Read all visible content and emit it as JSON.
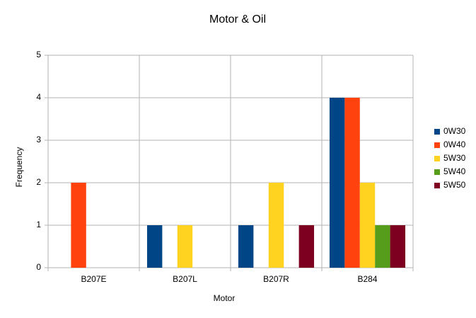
{
  "chart_data": {
    "type": "bar",
    "title": "Motor & Oil",
    "x_label": "Motor",
    "y_label": "Frequency",
    "categories": [
      "B207E",
      "B207L",
      "B207R",
      "B284"
    ],
    "series": [
      {
        "name": "0W30",
        "color": "#004586",
        "values": [
          0,
          1,
          1,
          4
        ]
      },
      {
        "name": "0W40",
        "color": "#ff420e",
        "values": [
          2,
          0,
          0,
          4
        ]
      },
      {
        "name": "5W30",
        "color": "#ffd320",
        "values": [
          0,
          1,
          2,
          2
        ]
      },
      {
        "name": "5W40",
        "color": "#579d1c",
        "values": [
          0,
          0,
          0,
          1
        ]
      },
      {
        "name": "5W50",
        "color": "#7e0021",
        "values": [
          0,
          0,
          1,
          1
        ]
      }
    ],
    "ylim": [
      0,
      5
    ],
    "yticks": [
      0,
      1,
      2,
      3,
      4,
      5
    ],
    "grid": true,
    "legend": "right"
  }
}
